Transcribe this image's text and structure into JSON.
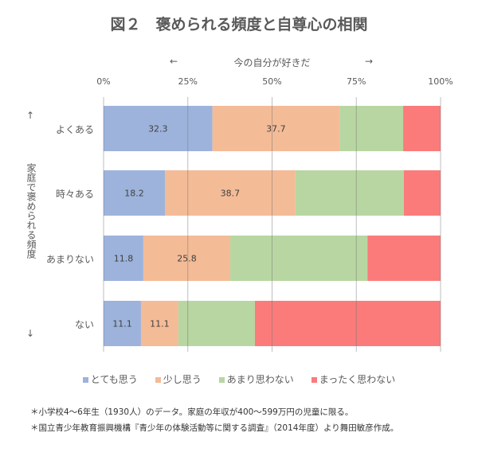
{
  "chart_data": {
    "type": "bar",
    "orientation": "horizontal",
    "stacked": "percent",
    "title": "図２　褒められる頻度と自尊心の相関",
    "xlabel": "今の自分が好きだ",
    "xlabel_arrows": [
      "←",
      "→"
    ],
    "ylabel": "家庭で褒められる頻度",
    "ylabel_arrows": [
      "↑",
      "↓"
    ],
    "xlim": [
      0,
      100
    ],
    "xticks": [
      "0%",
      "25%",
      "50%",
      "75%",
      "100%"
    ],
    "grid": true,
    "legend_position": "bottom",
    "categories": [
      "よくある",
      "時々ある",
      "あまりない",
      "ない"
    ],
    "series": [
      {
        "name": "とても思う",
        "color": "#9db3dc",
        "values": [
          32.3,
          18.2,
          11.8,
          11.1
        ],
        "labels": [
          "32.3",
          "18.2",
          "11.8",
          "11.1"
        ]
      },
      {
        "name": "少し思う",
        "color": "#f4bb97",
        "values": [
          37.7,
          38.7,
          25.8,
          11.1
        ],
        "labels": [
          "37.7",
          "38.7",
          "25.8",
          "11.1"
        ]
      },
      {
        "name": "あまり思わない",
        "color": "#b8d6a2",
        "values": [
          18.9,
          32.2,
          40.7,
          22.7
        ]
      },
      {
        "name": "まったく思わない",
        "color": "#fb7b7b",
        "values": [
          11.1,
          10.9,
          21.7,
          55.1
        ]
      }
    ]
  },
  "notes": [
    "＊小学校4～6年生（1930人）のデータ。家庭の年収が400～599万円の児童に限る。",
    "＊国立青少年教育振興機構『青少年の体験活動等に関する調査』（2014年度）より舞田敏彦作成。"
  ]
}
